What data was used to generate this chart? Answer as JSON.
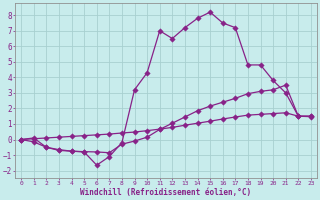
{
  "xlabel": "Windchill (Refroidissement éolien,°C)",
  "bg_color": "#c8ecec",
  "line_color": "#882288",
  "grid_color": "#a8d0d0",
  "xlim_min": -0.5,
  "xlim_max": 23.5,
  "ylim_min": -2.5,
  "ylim_max": 8.8,
  "xticks": [
    0,
    1,
    2,
    3,
    4,
    5,
    6,
    7,
    8,
    9,
    10,
    11,
    12,
    13,
    14,
    15,
    16,
    17,
    18,
    19,
    20,
    21,
    22,
    23
  ],
  "yticks": [
    -2,
    -1,
    0,
    1,
    2,
    3,
    4,
    5,
    6,
    7,
    8
  ],
  "curve1_x": [
    0,
    1,
    2,
    3,
    4,
    5,
    6,
    7,
    8,
    9,
    10,
    11,
    12,
    13,
    14,
    15,
    16,
    17,
    18,
    19,
    20,
    21,
    22,
    23
  ],
  "curve1_y": [
    0.0,
    -0.15,
    -0.5,
    -0.65,
    -0.75,
    -0.8,
    -1.65,
    -1.1,
    -0.2,
    3.2,
    4.3,
    7.0,
    6.5,
    7.2,
    7.8,
    8.2,
    7.5,
    7.2,
    4.8,
    4.8,
    3.8,
    3.0,
    1.5,
    1.5
  ],
  "curve2_x": [
    0,
    1,
    2,
    3,
    4,
    5,
    6,
    7,
    8,
    9,
    10,
    11,
    12,
    13,
    14,
    15,
    16,
    17,
    18,
    19,
    20,
    21,
    22,
    23
  ],
  "curve2_y": [
    0.0,
    0.1,
    -0.5,
    -0.7,
    -0.75,
    -0.78,
    -0.8,
    -0.85,
    -0.3,
    -0.1,
    0.15,
    0.65,
    1.05,
    1.45,
    1.85,
    2.15,
    2.4,
    2.65,
    2.95,
    3.1,
    3.2,
    3.5,
    1.5,
    1.5
  ],
  "curve3_x": [
    0,
    1,
    2,
    3,
    4,
    5,
    6,
    7,
    8,
    9,
    10,
    11,
    12,
    13,
    14,
    15,
    16,
    17,
    18,
    19,
    20,
    21,
    22,
    23
  ],
  "curve3_y": [
    0.0,
    0.05,
    0.1,
    0.15,
    0.2,
    0.25,
    0.3,
    0.35,
    0.42,
    0.48,
    0.57,
    0.67,
    0.78,
    0.92,
    1.05,
    1.18,
    1.32,
    1.45,
    1.57,
    1.62,
    1.67,
    1.72,
    1.5,
    1.47
  ],
  "xlabel_fontsize": 5.5,
  "xtick_fontsize": 4.5,
  "ytick_fontsize": 5.5,
  "marker_size": 2.8,
  "line_width": 0.9
}
